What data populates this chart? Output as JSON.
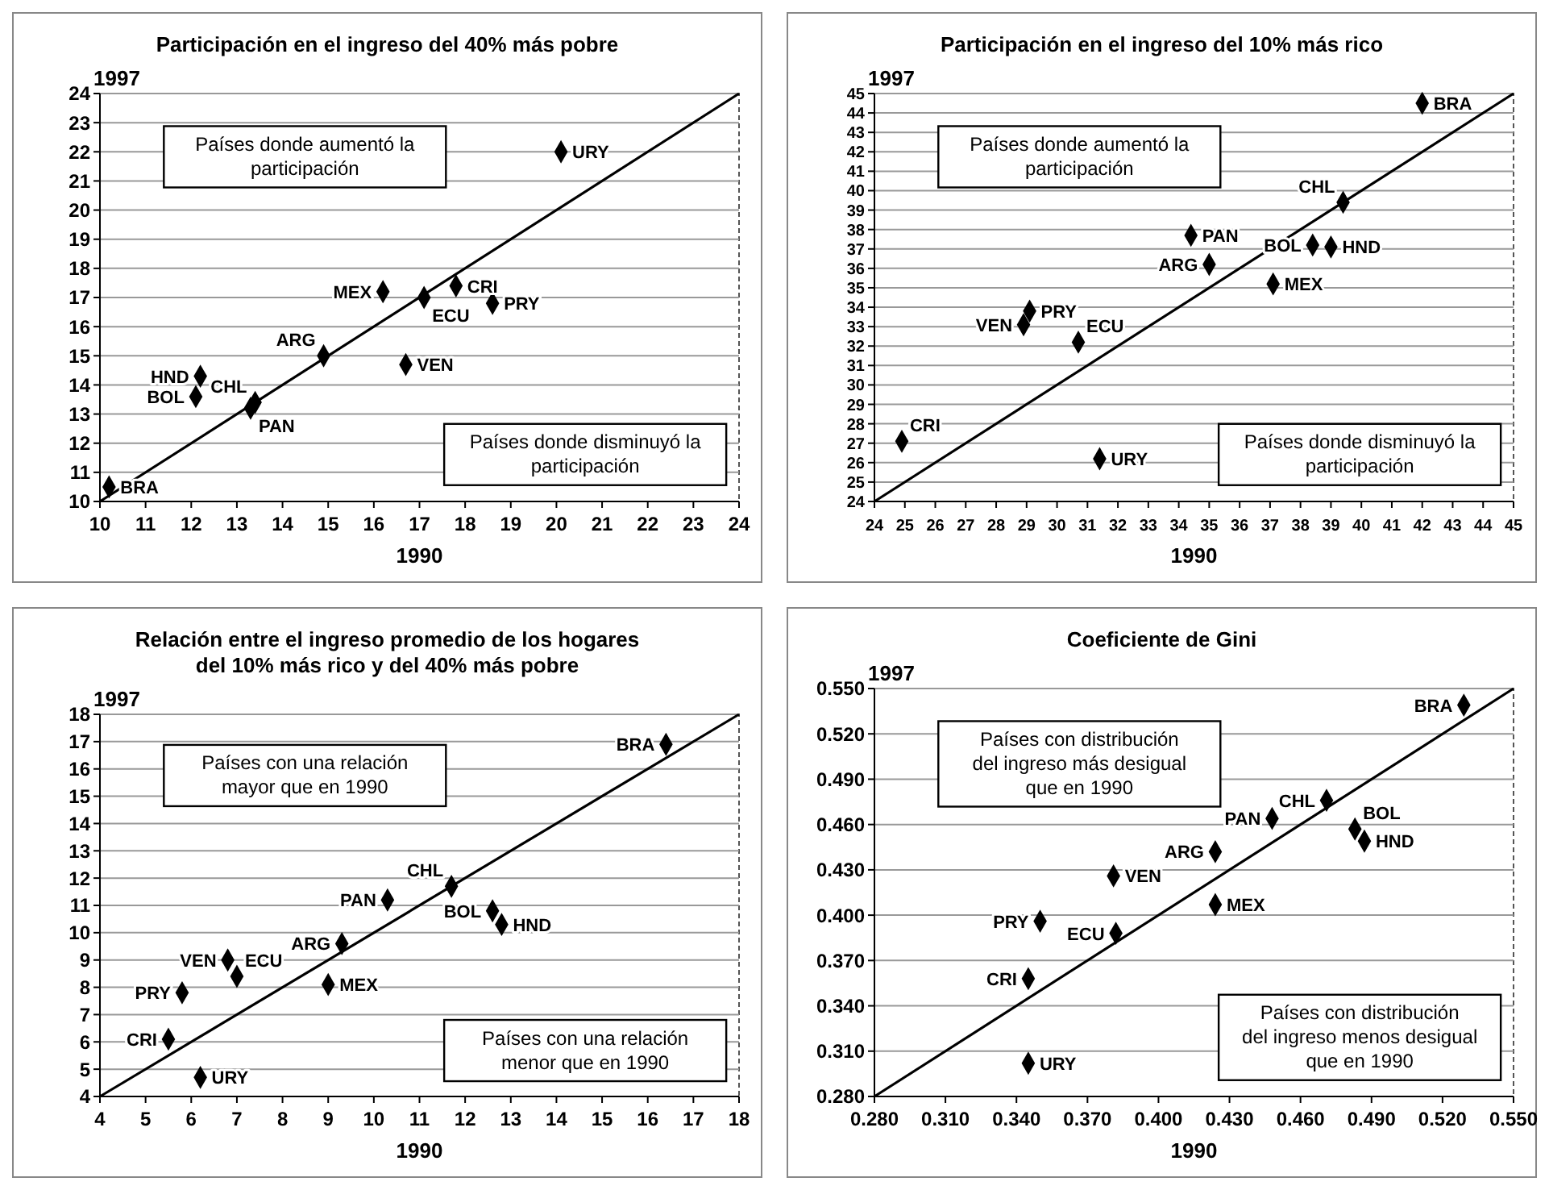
{
  "chart_data": [
    {
      "type": "scatter",
      "title": "Participación en el ingreso del 40% más pobre",
      "xlabel": "1990",
      "ylabel": "1997",
      "xlim": [
        10,
        24
      ],
      "ylim": [
        10,
        24
      ],
      "xticks": [
        10,
        11,
        12,
        13,
        14,
        15,
        16,
        17,
        18,
        19,
        20,
        21,
        22,
        23,
        24
      ],
      "yticks": [
        10,
        11,
        12,
        13,
        14,
        15,
        16,
        17,
        18,
        19,
        20,
        21,
        22,
        23,
        24
      ],
      "grid": "y",
      "marker": "diamond",
      "annotations": [
        "Países donde aumentó la participación",
        "Países donde disminuyó la participación"
      ],
      "series": [
        {
          "name": "ARG",
          "color": "#000000",
          "x": [
            14.9
          ],
          "values": [
            15.0
          ]
        },
        {
          "name": "BOL",
          "color": "#000000",
          "x": [
            12.1
          ],
          "values": [
            13.6
          ]
        },
        {
          "name": "BRA",
          "color": "#000000",
          "x": [
            10.2
          ],
          "values": [
            10.5
          ]
        },
        {
          "name": "CHL",
          "color": "#000000",
          "x": [
            13.4
          ],
          "values": [
            13.4
          ]
        },
        {
          "name": "CRI",
          "color": "#000000",
          "x": [
            17.8
          ],
          "values": [
            17.4
          ]
        },
        {
          "name": "ECU",
          "color": "#000000",
          "x": [
            17.1
          ],
          "values": [
            17.0
          ]
        },
        {
          "name": "HND",
          "color": "#000000",
          "x": [
            12.2
          ],
          "values": [
            14.3
          ]
        },
        {
          "name": "MEX",
          "color": "#000000",
          "x": [
            16.2
          ],
          "values": [
            17.2
          ]
        },
        {
          "name": "PAN",
          "color": "#000000",
          "x": [
            13.3
          ],
          "values": [
            13.2
          ]
        },
        {
          "name": "PRY",
          "color": "#000000",
          "x": [
            18.6
          ],
          "values": [
            16.8
          ]
        },
        {
          "name": "URY",
          "color": "#000000",
          "x": [
            20.1
          ],
          "values": [
            22.0
          ]
        },
        {
          "name": "VEN",
          "color": "#000000",
          "x": [
            16.7
          ],
          "values": [
            14.7
          ]
        },
        {
          "type": "line",
          "marker": "none",
          "color": "#000000",
          "x": [
            10,
            24
          ],
          "values": [
            10,
            24
          ]
        }
      ]
    },
    {
      "type": "scatter",
      "title": "Participación en el ingreso del 10% más rico",
      "xlabel": "1990",
      "ylabel": "1997",
      "xlim": [
        24,
        45
      ],
      "ylim": [
        24,
        45
      ],
      "xticks": [
        24,
        25,
        26,
        27,
        28,
        29,
        30,
        31,
        32,
        33,
        34,
        35,
        36,
        37,
        38,
        39,
        40,
        41,
        42,
        43,
        44,
        45
      ],
      "yticks": [
        24,
        25,
        26,
        27,
        28,
        29,
        30,
        31,
        32,
        33,
        34,
        35,
        36,
        37,
        38,
        39,
        40,
        41,
        42,
        43,
        44,
        45
      ],
      "grid": "y",
      "marker": "diamond",
      "annotations": [
        "Países donde aumentó la participación",
        "Países donde disminuyó la participación"
      ],
      "series": [
        {
          "name": "ARG",
          "color": "#000000",
          "x": [
            35.0
          ],
          "values": [
            36.2
          ]
        },
        {
          "name": "BOL",
          "color": "#000000",
          "x": [
            38.4
          ],
          "values": [
            37.2
          ]
        },
        {
          "name": "BRA",
          "color": "#000000",
          "x": [
            42.0
          ],
          "values": [
            44.5
          ]
        },
        {
          "name": "CHL",
          "color": "#000000",
          "x": [
            39.4
          ],
          "values": [
            39.4
          ]
        },
        {
          "name": "CRI",
          "color": "#000000",
          "x": [
            24.9
          ],
          "values": [
            27.1
          ]
        },
        {
          "name": "ECU",
          "color": "#000000",
          "x": [
            30.7
          ],
          "values": [
            32.2
          ]
        },
        {
          "name": "HND",
          "color": "#000000",
          "x": [
            39.0
          ],
          "values": [
            37.1
          ]
        },
        {
          "name": "MEX",
          "color": "#000000",
          "x": [
            37.1
          ],
          "values": [
            35.2
          ]
        },
        {
          "name": "PAN",
          "color": "#000000",
          "x": [
            34.4
          ],
          "values": [
            37.7
          ]
        },
        {
          "name": "PRY",
          "color": "#000000",
          "x": [
            29.1
          ],
          "values": [
            33.8
          ]
        },
        {
          "name": "URY",
          "color": "#000000",
          "x": [
            31.4
          ],
          "values": [
            26.2
          ]
        },
        {
          "name": "VEN",
          "color": "#000000",
          "x": [
            28.9
          ],
          "values": [
            33.1
          ]
        },
        {
          "type": "line",
          "marker": "none",
          "color": "#000000",
          "x": [
            24,
            45
          ],
          "values": [
            24,
            45
          ]
        }
      ]
    },
    {
      "type": "scatter",
      "title": "Relación entre el ingreso promedio de los hogares del 10% más rico y del 40% más pobre",
      "xlabel": "1990",
      "ylabel": "1997",
      "xlim": [
        4,
        18
      ],
      "ylim": [
        4,
        18
      ],
      "xticks": [
        4,
        5,
        6,
        7,
        8,
        9,
        10,
        11,
        12,
        13,
        14,
        15,
        16,
        17,
        18
      ],
      "yticks": [
        4,
        5,
        6,
        7,
        8,
        9,
        10,
        11,
        12,
        13,
        14,
        15,
        16,
        17,
        18
      ],
      "grid": "y",
      "marker": "diamond",
      "annotations": [
        "Países con una relación mayor que en 1990",
        "Países con una relación menor que en 1990"
      ],
      "series": [
        {
          "name": "ARG",
          "color": "#000000",
          "x": [
            9.3
          ],
          "values": [
            9.6
          ]
        },
        {
          "name": "BOL",
          "color": "#000000",
          "x": [
            12.6
          ],
          "values": [
            10.8
          ]
        },
        {
          "name": "BRA",
          "color": "#000000",
          "x": [
            16.4
          ],
          "values": [
            16.9
          ]
        },
        {
          "name": "CHL",
          "color": "#000000",
          "x": [
            11.7
          ],
          "values": [
            11.7
          ]
        },
        {
          "name": "CRI",
          "color": "#000000",
          "x": [
            5.5
          ],
          "values": [
            6.1
          ]
        },
        {
          "name": "ECU",
          "color": "#000000",
          "x": [
            7.0
          ],
          "values": [
            8.4
          ]
        },
        {
          "name": "HND",
          "color": "#000000",
          "x": [
            12.8
          ],
          "values": [
            10.3
          ]
        },
        {
          "name": "MEX",
          "color": "#000000",
          "x": [
            9.0
          ],
          "values": [
            8.1
          ]
        },
        {
          "name": "PAN",
          "color": "#000000",
          "x": [
            10.3
          ],
          "values": [
            11.2
          ]
        },
        {
          "name": "PRY",
          "color": "#000000",
          "x": [
            5.8
          ],
          "values": [
            7.8
          ]
        },
        {
          "name": "URY",
          "color": "#000000",
          "x": [
            6.2
          ],
          "values": [
            4.7
          ]
        },
        {
          "name": "VEN",
          "color": "#000000",
          "x": [
            6.8
          ],
          "values": [
            9.0
          ]
        },
        {
          "type": "line",
          "marker": "none",
          "color": "#000000",
          "x": [
            4,
            18
          ],
          "values": [
            4,
            18
          ]
        }
      ]
    },
    {
      "type": "scatter",
      "title": "Coeficiente de Gini",
      "xlabel": "1990",
      "ylabel": "1997",
      "xlim": [
        0.28,
        0.55
      ],
      "ylim": [
        0.28,
        0.55
      ],
      "xticks": [
        {
          "value": 0.28,
          "label": "0.280"
        },
        {
          "value": 0.31,
          "label": "0.310"
        },
        {
          "value": 0.34,
          "label": "0.340"
        },
        {
          "value": 0.37,
          "label": "0.370"
        },
        {
          "value": 0.4,
          "label": "0.400"
        },
        {
          "value": 0.43,
          "label": "0.430"
        },
        {
          "value": 0.46,
          "label": "0.460"
        },
        {
          "value": 0.49,
          "label": "0.490"
        },
        {
          "value": 0.52,
          "label": "0.520"
        },
        {
          "value": 0.55,
          "label": "0.550"
        }
      ],
      "yticks": [
        {
          "value": 0.28,
          "label": "0.280"
        },
        {
          "value": 0.31,
          "label": "0.310"
        },
        {
          "value": 0.34,
          "label": "0.340"
        },
        {
          "value": 0.37,
          "label": "0.370"
        },
        {
          "value": 0.4,
          "label": "0.400"
        },
        {
          "value": 0.43,
          "label": "0.430"
        },
        {
          "value": 0.46,
          "label": "0.460"
        },
        {
          "value": 0.49,
          "label": "0.490"
        },
        {
          "value": 0.52,
          "label": "0.520"
        },
        {
          "value": 0.55,
          "label": "0.550"
        }
      ],
      "grid": "y",
      "marker": "diamond",
      "annotations": [
        "Países con distribución del ingreso más desigual que en 1990",
        "Países con distribución del ingreso menos desigual que en 1990"
      ],
      "series": [
        {
          "name": "ARG",
          "color": "#000000",
          "x": [
            0.424
          ],
          "values": [
            0.442
          ]
        },
        {
          "name": "BOL",
          "color": "#000000",
          "x": [
            0.483
          ],
          "values": [
            0.457
          ]
        },
        {
          "name": "BRA",
          "color": "#000000",
          "x": [
            0.529
          ],
          "values": [
            0.539
          ]
        },
        {
          "name": "CHL",
          "color": "#000000",
          "x": [
            0.471
          ],
          "values": [
            0.476
          ]
        },
        {
          "name": "CRI",
          "color": "#000000",
          "x": [
            0.345
          ],
          "values": [
            0.358
          ]
        },
        {
          "name": "ECU",
          "color": "#000000",
          "x": [
            0.382
          ],
          "values": [
            0.388
          ]
        },
        {
          "name": "HND",
          "color": "#000000",
          "x": [
            0.487
          ],
          "values": [
            0.449
          ]
        },
        {
          "name": "MEX",
          "color": "#000000",
          "x": [
            0.424
          ],
          "values": [
            0.407
          ]
        },
        {
          "name": "PAN",
          "color": "#000000",
          "x": [
            0.448
          ],
          "values": [
            0.464
          ]
        },
        {
          "name": "PRY",
          "color": "#000000",
          "x": [
            0.35
          ],
          "values": [
            0.396
          ]
        },
        {
          "name": "URY",
          "color": "#000000",
          "x": [
            0.345
          ],
          "values": [
            0.302
          ]
        },
        {
          "name": "VEN",
          "color": "#000000",
          "x": [
            0.381
          ],
          "values": [
            0.426
          ]
        },
        {
          "type": "line",
          "marker": "none",
          "color": "#000000",
          "x": [
            0.28,
            0.55
          ],
          "values": [
            0.28,
            0.55
          ]
        }
      ]
    }
  ]
}
